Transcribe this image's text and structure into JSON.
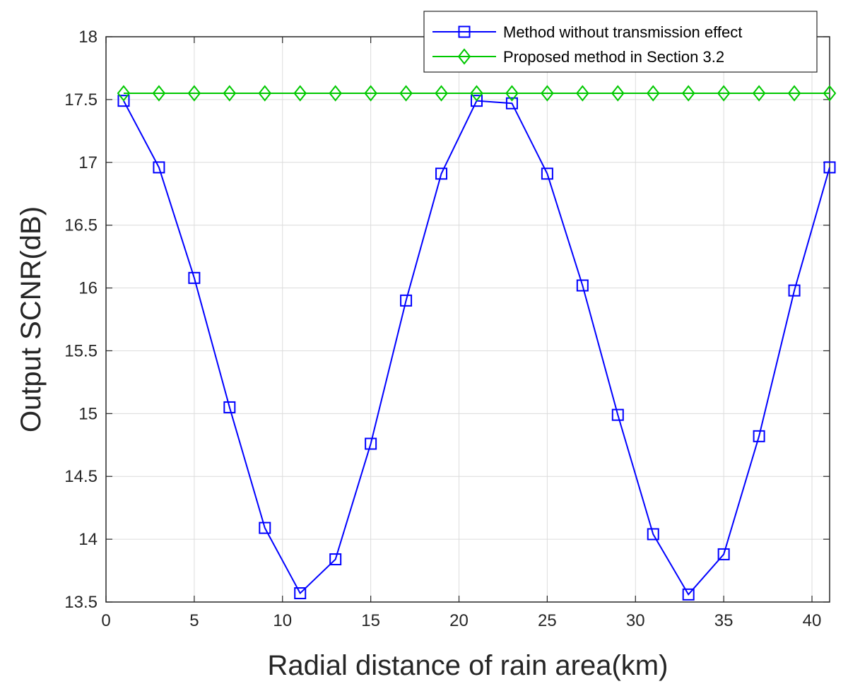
{
  "chart_data": {
    "type": "line",
    "title": "",
    "xlabel": "Radial distance of rain area(km)",
    "ylabel": "Output SCNR(dB)",
    "xlim": [
      0,
      41
    ],
    "ylim": [
      13.5,
      18
    ],
    "xticks": [
      0,
      5,
      10,
      15,
      20,
      25,
      30,
      35,
      40
    ],
    "yticks": [
      13.5,
      14,
      14.5,
      15,
      15.5,
      16,
      16.5,
      17,
      17.5,
      18
    ],
    "grid": true,
    "legend_position": "top-right",
    "x": [
      1,
      3,
      5,
      7,
      9,
      11,
      13,
      15,
      17,
      19,
      21,
      23,
      25,
      27,
      29,
      31,
      33,
      35,
      37,
      39,
      41
    ],
    "series": [
      {
        "name": "Method without transmission effect",
        "color": "#0000ff",
        "marker": "square",
        "values": [
          17.49,
          16.96,
          16.08,
          15.05,
          14.09,
          13.57,
          13.84,
          14.76,
          15.9,
          16.91,
          17.49,
          17.47,
          16.91,
          16.02,
          14.99,
          14.04,
          13.56,
          13.88,
          14.82,
          15.98,
          16.96
        ]
      },
      {
        "name": "Proposed method in Section 3.2",
        "color": "#00c800",
        "marker": "diamond",
        "values": [
          17.55,
          17.55,
          17.55,
          17.55,
          17.55,
          17.55,
          17.55,
          17.55,
          17.55,
          17.55,
          17.55,
          17.55,
          17.55,
          17.55,
          17.55,
          17.55,
          17.55,
          17.55,
          17.55,
          17.55,
          17.55
        ]
      }
    ]
  }
}
